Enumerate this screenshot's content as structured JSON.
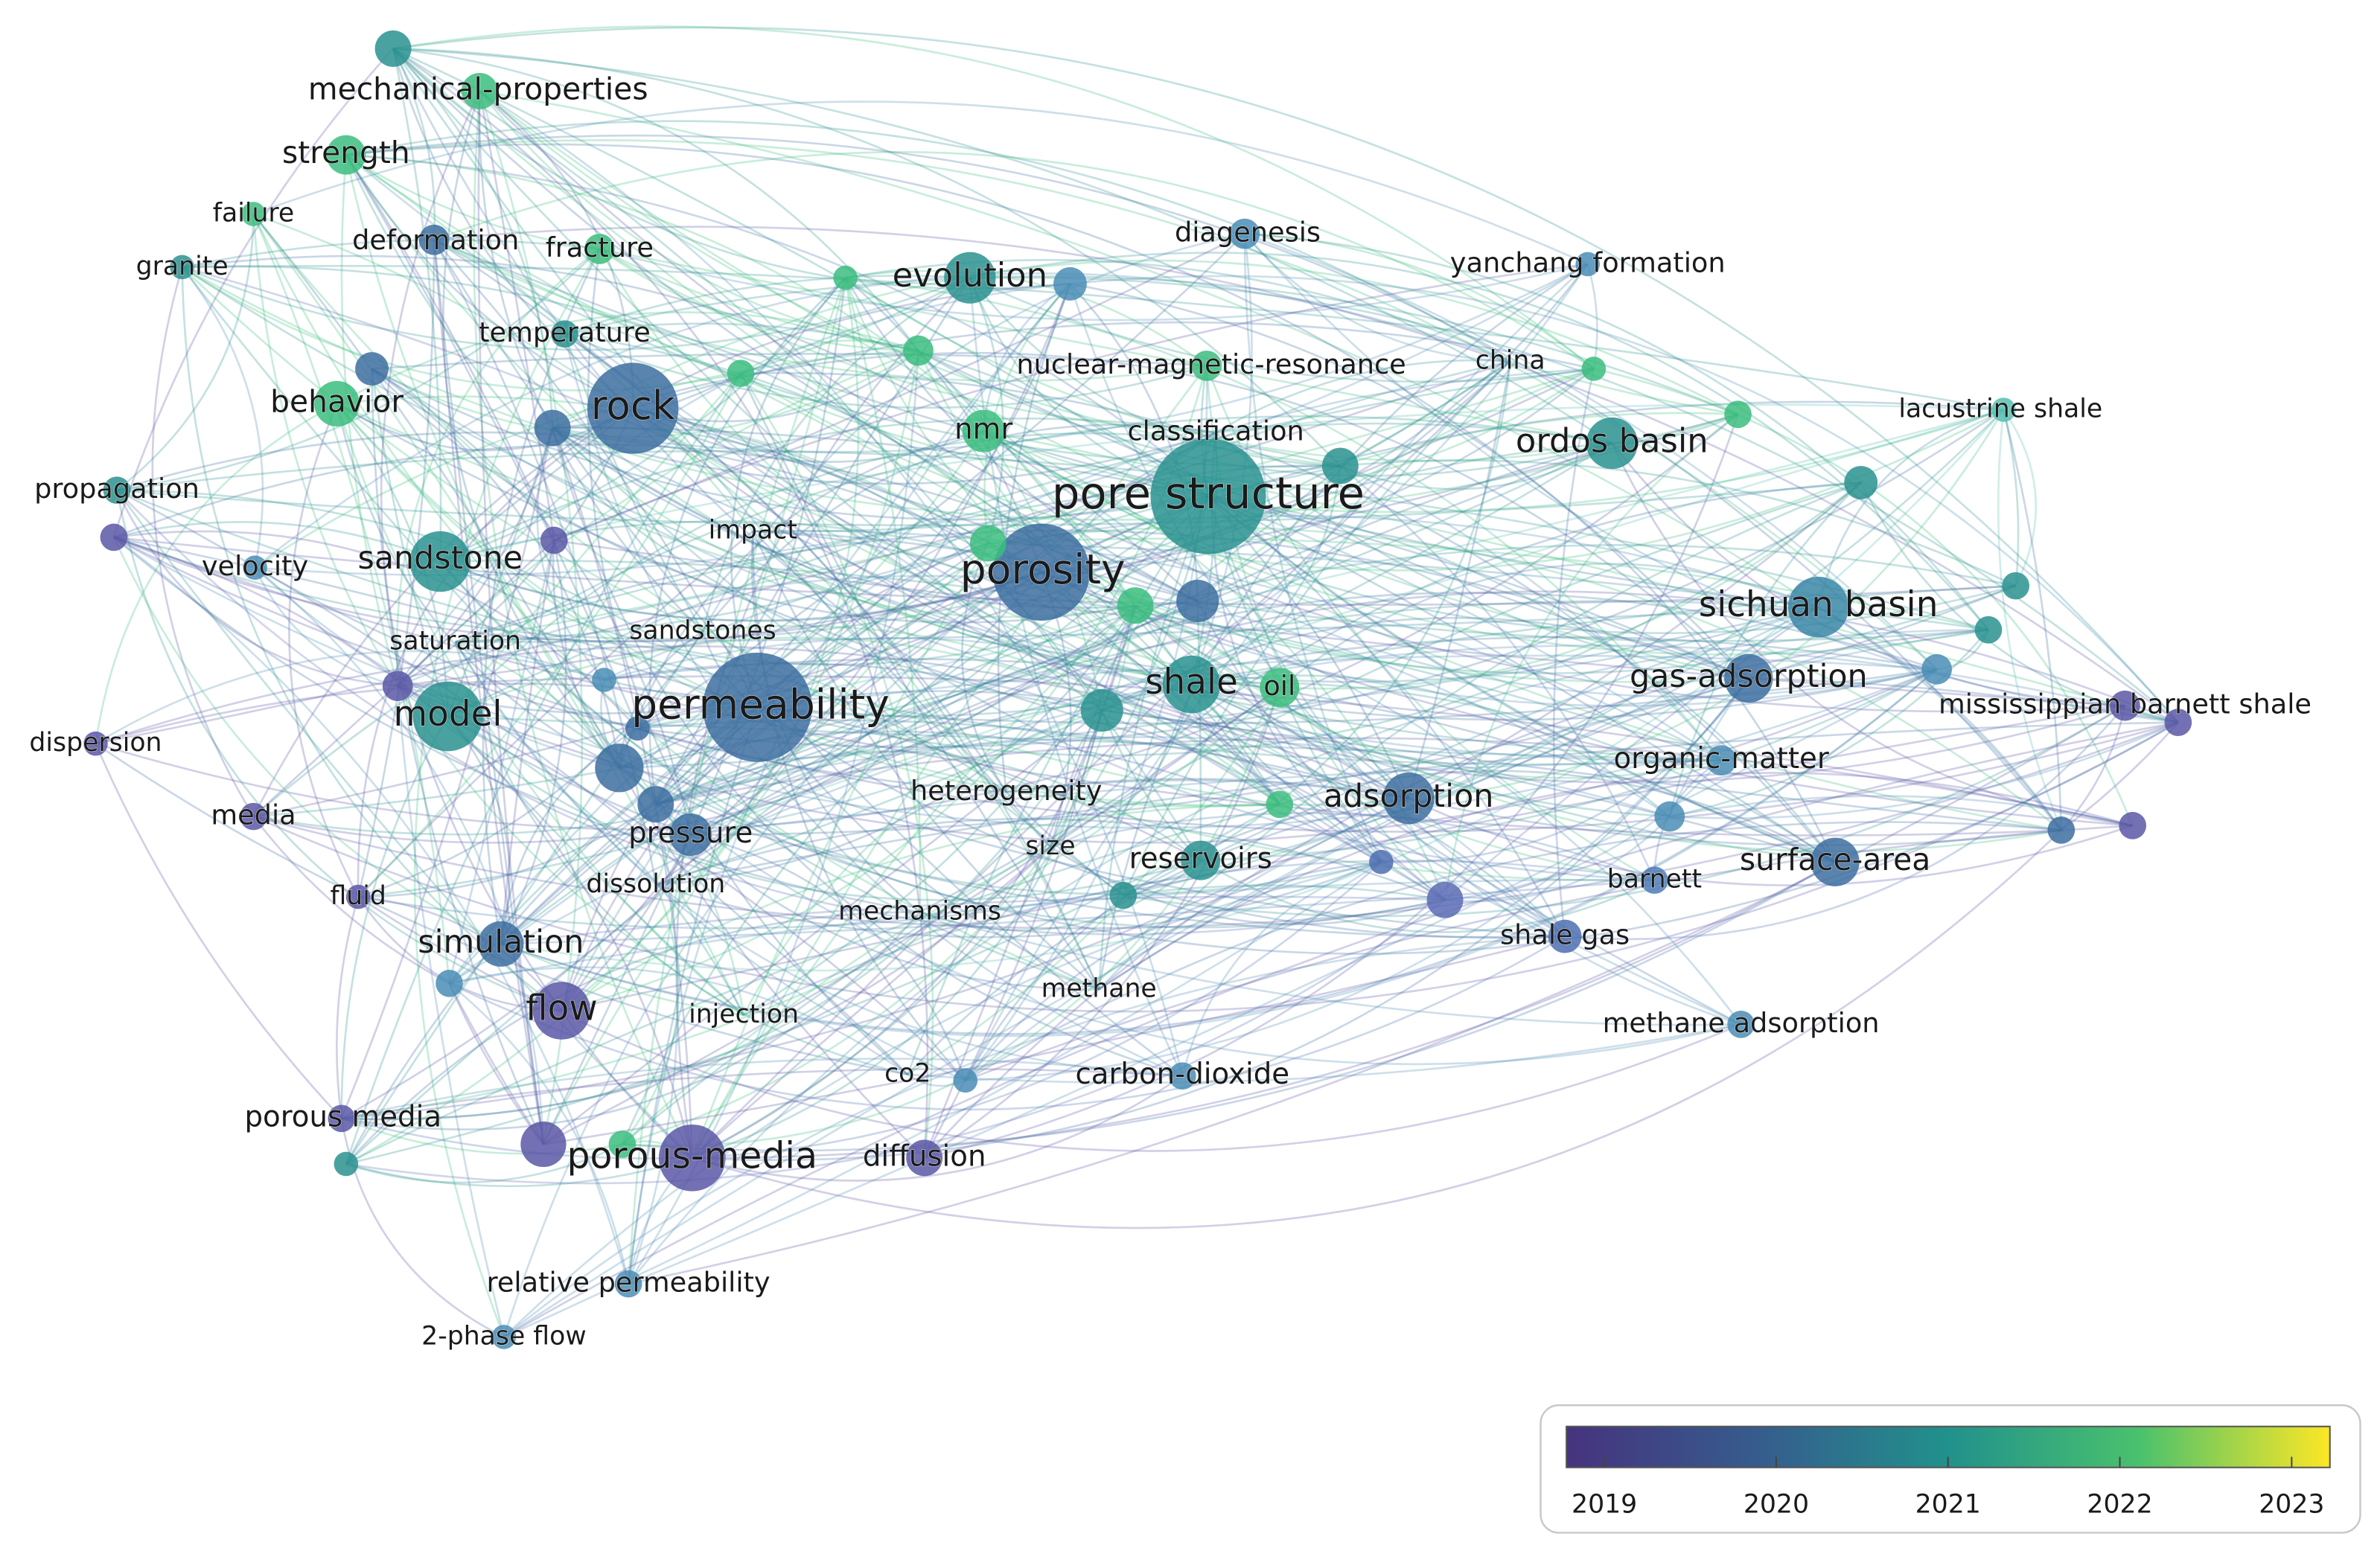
{
  "nodes": [
    {
      "label": "mechanical-properties"
    },
    {
      "label": "strength"
    },
    {
      "label": "failure"
    },
    {
      "label": "granite"
    },
    {
      "label": "deformation"
    },
    {
      "label": "fracture"
    },
    {
      "label": "temperature"
    },
    {
      "label": "behavior"
    },
    {
      "label": "rock"
    },
    {
      "label": "propagation"
    },
    {
      "label": "velocity"
    },
    {
      "label": "sandstone"
    },
    {
      "label": "saturation"
    },
    {
      "label": "dispersion"
    },
    {
      "label": "model"
    },
    {
      "label": "media"
    },
    {
      "label": "fluid"
    },
    {
      "label": "simulation"
    },
    {
      "label": "flow"
    },
    {
      "label": "porous media"
    },
    {
      "label": "porous-media"
    },
    {
      "label": "relative permeability"
    },
    {
      "label": "2-phase flow"
    },
    {
      "label": "impact"
    },
    {
      "label": "sandstones"
    },
    {
      "label": "permeability"
    },
    {
      "label": "pressure"
    },
    {
      "label": "dissolution"
    },
    {
      "label": "injection"
    },
    {
      "label": "mechanisms"
    },
    {
      "label": "co2"
    },
    {
      "label": "diffusion"
    },
    {
      "label": "methane"
    },
    {
      "label": "carbon-dioxide"
    },
    {
      "label": "evolution"
    },
    {
      "label": "diagenesis"
    },
    {
      "label": "nmr"
    },
    {
      "label": "nuclear-magnetic-resonance"
    },
    {
      "label": "classification"
    },
    {
      "label": "pore structure"
    },
    {
      "label": "porosity"
    },
    {
      "label": "heterogeneity"
    },
    {
      "label": "size"
    },
    {
      "label": "reservoirs"
    },
    {
      "label": "shale"
    },
    {
      "label": "oil"
    },
    {
      "label": "adsorption"
    },
    {
      "label": "yanchang formation"
    },
    {
      "label": "china"
    },
    {
      "label": "lacustrine shale"
    },
    {
      "label": "ordos basin"
    },
    {
      "label": "sichuan basin"
    },
    {
      "label": "gas-adsorption"
    },
    {
      "label": "mississippian barnett shale"
    },
    {
      "label": "organic-matter"
    },
    {
      "label": "surface-area"
    },
    {
      "label": "barnett"
    },
    {
      "label": "shale gas"
    },
    {
      "label": "methane adsorption"
    }
  ],
  "legend": {
    "ticks": [
      2019,
      2020,
      2021,
      2022,
      2023
    ]
  }
}
